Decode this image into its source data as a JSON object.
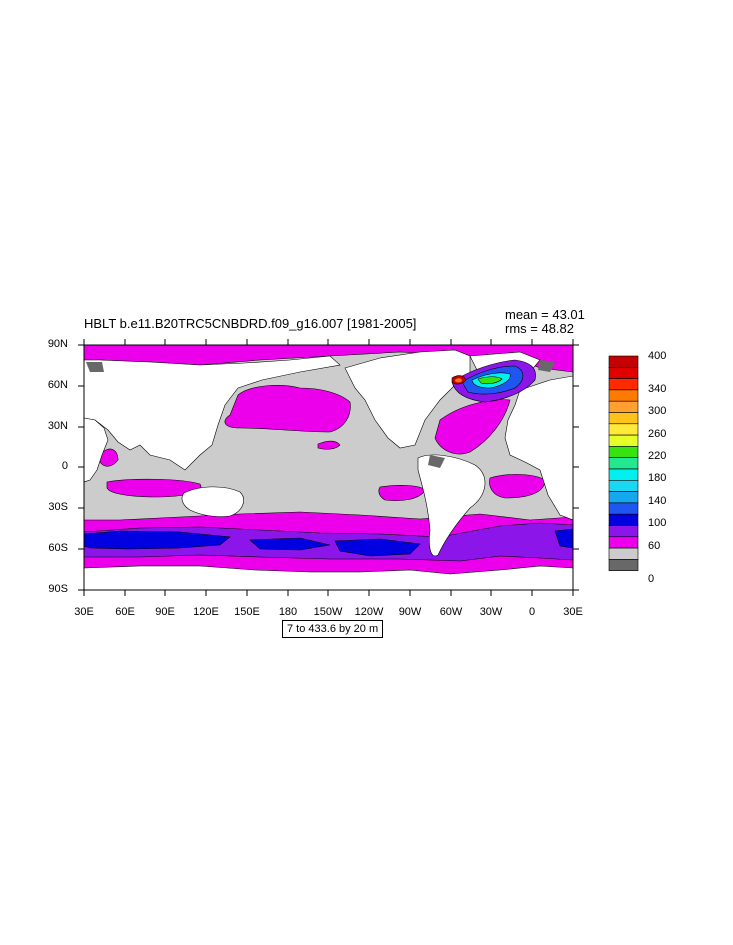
{
  "title": "HBLT b.e11.B20TRC5CNBDRD.f09_g16.007 [1981-2005]",
  "stats": {
    "mean": "mean = 43.01",
    "rms": "rms = 48.82"
  },
  "contour_info": "7 to 433.6 by 20 m",
  "latitude_labels": [
    "90N",
    "60N",
    "30N",
    "0",
    "30S",
    "60S",
    "90S"
  ],
  "longitude_labels": [
    "30E",
    "60E",
    "90E",
    "120E",
    "150E",
    "180",
    "150W",
    "120W",
    "90W",
    "60W",
    "30W",
    "0",
    "30E"
  ],
  "colorbar": {
    "labels": [
      "400",
      "340",
      "300",
      "260",
      "220",
      "180",
      "140",
      "100",
      "60",
      "0"
    ],
    "colors": [
      "#c40000",
      "#e00000",
      "#ff2a00",
      "#ff7a00",
      "#ffa030",
      "#ffc21a",
      "#ffe93a",
      "#e6ff28",
      "#35e30f",
      "#22e88f",
      "#00f0f0",
      "#18d8f2",
      "#16a8ee",
      "#1f56f2",
      "#0000e0",
      "#8c16ea",
      "#ec00ec",
      "#cccccc",
      "#686868"
    ]
  },
  "colors": {
    "land": "#ffffff",
    "ocean_base": "#cccccc",
    "magenta": "#ec00ec",
    "purple": "#8c16ea",
    "blue": "#0000e0",
    "ice": "#686868"
  }
}
